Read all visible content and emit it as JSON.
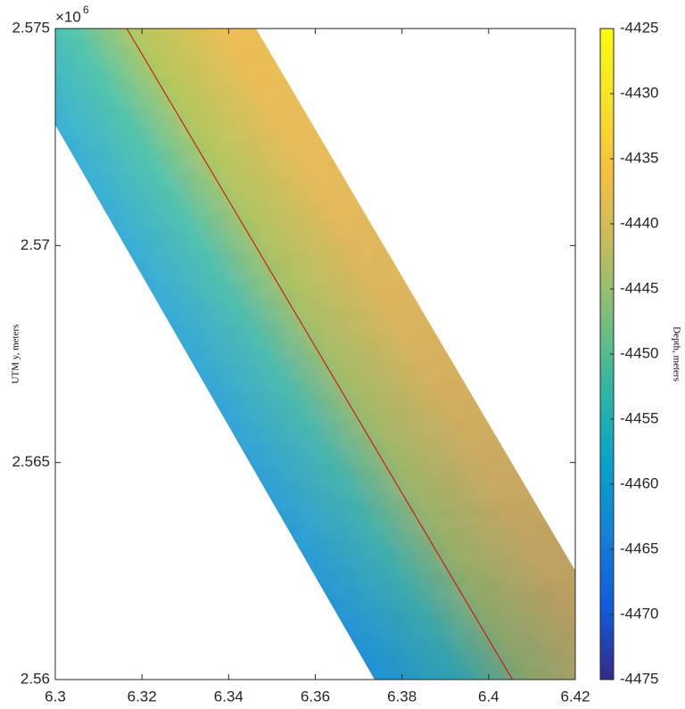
{
  "chart_data": {
    "type": "map",
    "ylabel": "UTM y, meters",
    "colorbar_label": "Depth, meters",
    "y_exponent": {
      "base": "×10",
      "power": 6
    },
    "xlim": [
      6.3,
      6.42
    ],
    "xticks": [
      6.3,
      6.32,
      6.34,
      6.36,
      6.38,
      6.4,
      6.42
    ],
    "ylim": [
      2.56,
      2.575
    ],
    "yticks": [
      2.56,
      2.565,
      2.57,
      2.575
    ],
    "clim": [
      -4475,
      -4425
    ],
    "cticks": [
      -4475,
      -4470,
      -4465,
      -4460,
      -4455,
      -4450,
      -4445,
      -4440,
      -4435,
      -4430,
      -4425
    ],
    "colormap": "parula",
    "lines": [
      {
        "color": "#e00000",
        "x": [
          6.3165,
          6.4055
        ],
        "y": [
          2.575,
          2.56
        ]
      }
    ]
  }
}
